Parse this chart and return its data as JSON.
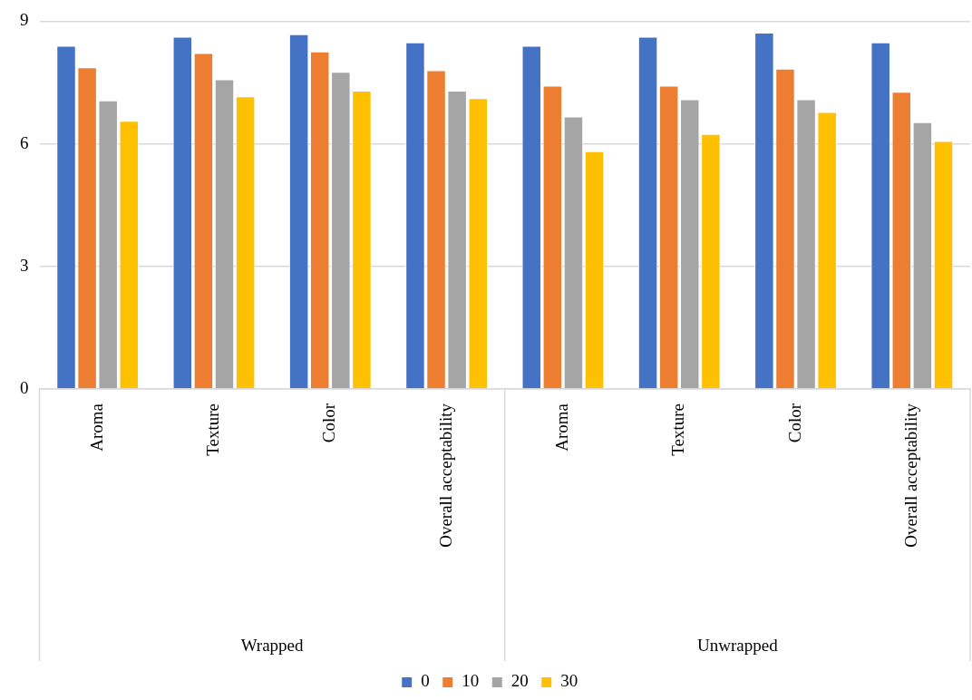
{
  "chart_data": {
    "type": "bar",
    "categories": [
      "Aroma",
      "Texture",
      "Color",
      "Overall acceptability",
      "Aroma",
      "Texture",
      "Color",
      "Overall acceptability"
    ],
    "annotations": [
      "Wrapped",
      "Unwrapped"
    ],
    "series": [
      {
        "name": "0",
        "color": "#4472c4",
        "values": [
          8.4,
          8.62,
          8.68,
          8.48,
          8.4,
          8.62,
          8.72,
          8.48
        ]
      },
      {
        "name": "10",
        "color": "#ed7d31",
        "values": [
          7.87,
          8.22,
          8.26,
          7.8,
          7.42,
          7.42,
          7.84,
          7.27
        ]
      },
      {
        "name": "20",
        "color": "#a5a5a5",
        "values": [
          7.06,
          7.58,
          7.76,
          7.3,
          6.67,
          7.09,
          7.09,
          6.53
        ]
      },
      {
        "name": "30",
        "color": "#ffc000",
        "values": [
          6.56,
          7.16,
          7.3,
          7.12,
          5.82,
          6.24,
          6.78,
          6.07
        ]
      }
    ],
    "ylim": [
      0,
      9
    ],
    "yticks": [
      0,
      3,
      6,
      9
    ],
    "grid": "y",
    "legend": "bottom"
  }
}
